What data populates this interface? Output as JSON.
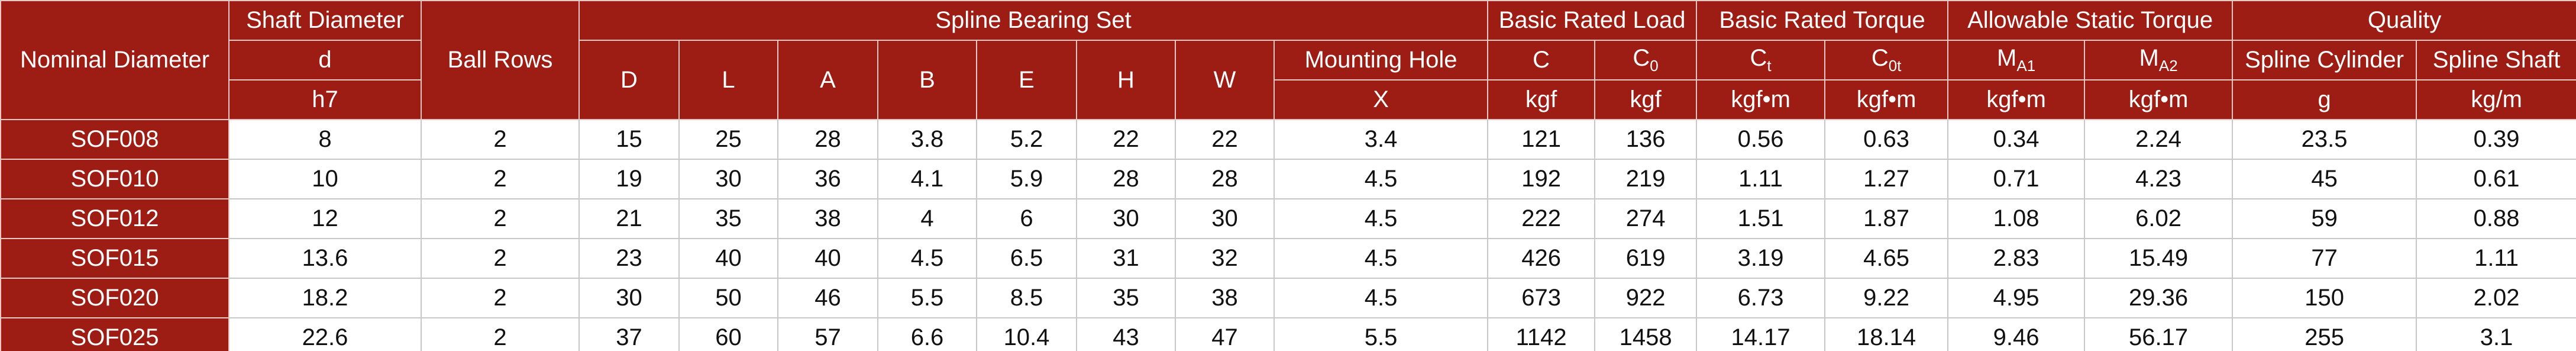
{
  "header": {
    "row1": [
      "Nominal Diameter",
      "Shaft Diameter",
      "Ball Rows",
      "Spline Bearing Set",
      "Basic Rated Load",
      "Basic Rated Torque",
      "Allowable Static Torque",
      "Quality"
    ],
    "row2": [
      "d",
      "D",
      "L",
      "A",
      "B",
      "E",
      "H",
      "W",
      "Mounting Hole",
      "C",
      [
        "C",
        "0"
      ],
      [
        "C",
        "t"
      ],
      [
        "C",
        "0t"
      ],
      [
        "M",
        "A1"
      ],
      [
        "M",
        "A2"
      ],
      "Spline Cylinder",
      "Spline Shaft"
    ],
    "row3": [
      "h7",
      "X",
      "kgf",
      "kgf",
      "kgf•m",
      "kgf•m",
      "kgf•m",
      "kgf•m",
      "g",
      "kg/m"
    ]
  },
  "table": {
    "rows": [
      [
        "SOF008",
        8,
        2,
        15,
        25,
        28,
        3.8,
        5.2,
        22,
        22,
        3.4,
        121,
        136,
        0.56,
        0.63,
        0.34,
        2.24,
        23.5,
        0.39
      ],
      [
        "SOF010",
        10,
        2,
        19,
        30,
        36,
        4.1,
        5.9,
        28,
        28,
        4.5,
        192,
        219,
        1.11,
        1.27,
        0.71,
        4.23,
        45,
        0.61
      ],
      [
        "SOF012",
        12,
        2,
        21,
        35,
        38,
        4,
        6,
        30,
        30,
        4.5,
        222,
        274,
        1.51,
        1.87,
        1.08,
        6.02,
        59,
        0.88
      ],
      [
        "SOF015",
        13.6,
        2,
        23,
        40,
        40,
        4.5,
        6.5,
        31,
        32,
        4.5,
        426,
        619,
        3.19,
        4.65,
        2.83,
        15.49,
        77,
        1.11
      ],
      [
        "SOF020",
        18.2,
        2,
        30,
        50,
        46,
        5.5,
        8.5,
        35,
        38,
        4.5,
        673,
        922,
        6.73,
        9.22,
        4.95,
        29.36,
        150,
        2.02
      ],
      [
        "SOF025",
        22.6,
        2,
        37,
        60,
        57,
        6.6,
        10.4,
        43,
        47,
        5.5,
        1142,
        1458,
        14.17,
        18.14,
        9.46,
        56.17,
        255,
        3.1
      ]
    ]
  }
}
